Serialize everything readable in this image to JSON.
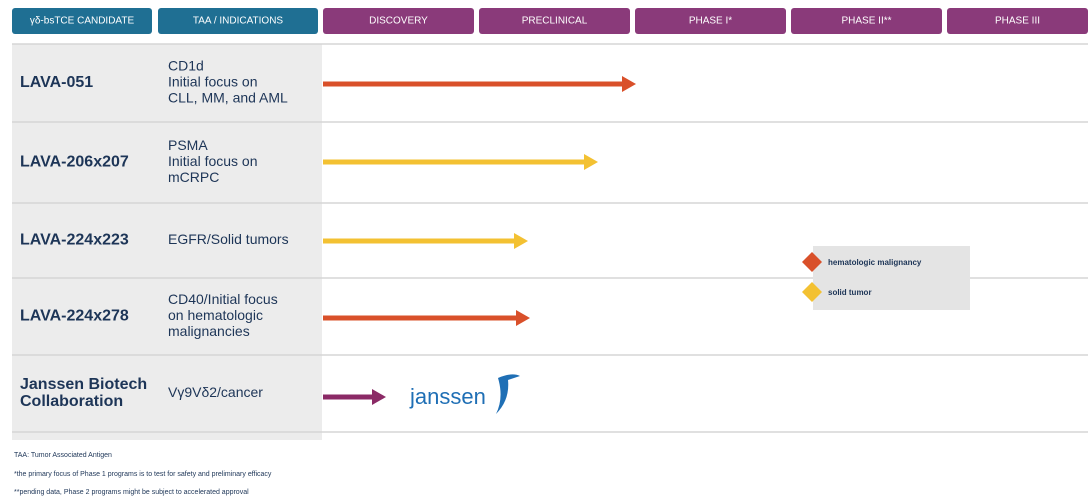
{
  "header": [
    "γδ-bsTCE CANDIDATE",
    "TAA / INDICATIONS",
    "DISCOVERY",
    "PRECLINICAL",
    "PHASE I*",
    "PHASE II**",
    "PHASE III"
  ],
  "rows": [
    {
      "name": [
        "LAVA-051"
      ],
      "indication": [
        "CD1d",
        "Initial focus on",
        "CLL, MM, and AML"
      ]
    },
    {
      "name": [
        "LAVA-206x207"
      ],
      "indication": [
        "PSMA",
        "Initial focus on",
        "mCRPC"
      ]
    },
    {
      "name": [
        "LAVA-224x223"
      ],
      "indication": [
        "EGFR/Solid tumors"
      ]
    },
    {
      "name": [
        "LAVA-224x278"
      ],
      "indication": [
        "CD40/Initial focus",
        "on hematologic",
        "malignancies"
      ]
    },
    {
      "name": [
        "Janssen Biotech",
        "Collaboration"
      ],
      "indication": [
        "Vγ9Vδ2/cancer"
      ]
    }
  ],
  "partner_logo": "janssen",
  "legend": [
    "hematologic malignancy",
    "solid tumor"
  ],
  "footnotes": [
    "TAA: Tumor Associated Antigen",
    "*the primary focus of Phase 1 programs is to test for safety and preliminary efficacy",
    "**pending data, Phase 2 programs might be subject to accelerated approval"
  ]
}
